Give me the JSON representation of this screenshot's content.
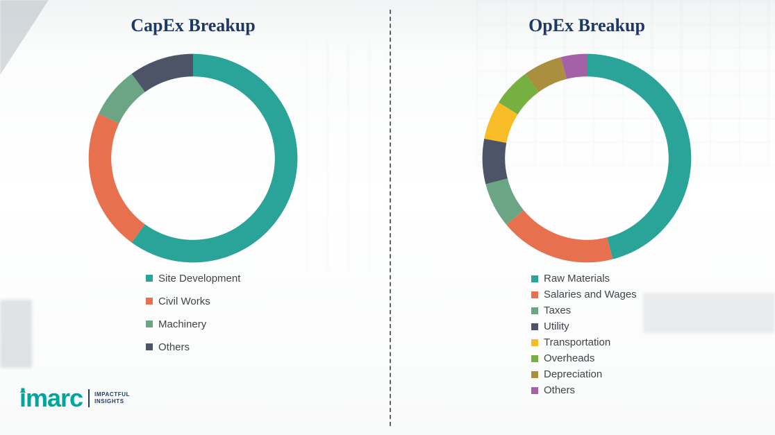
{
  "chart_data": [
    {
      "type": "pie",
      "donut": true,
      "title": "CapEx Breakup",
      "legend_position": "bottom",
      "segments": [
        {
          "label": "Site Development",
          "value": 60,
          "color": "#2aa398"
        },
        {
          "label": "Civil Works",
          "value": 22,
          "color": "#e7714e"
        },
        {
          "label": "Machinery",
          "value": 8,
          "color": "#6ba583"
        },
        {
          "label": "Others",
          "value": 10,
          "color": "#4d5468"
        }
      ]
    },
    {
      "type": "pie",
      "donut": true,
      "title": "OpEx Breakup",
      "legend_position": "bottom",
      "segments": [
        {
          "label": "Raw Materials",
          "value": 46,
          "color": "#2aa398"
        },
        {
          "label": "Salaries and Wages",
          "value": 18,
          "color": "#e7714e"
        },
        {
          "label": "Taxes",
          "value": 7,
          "color": "#6ba583"
        },
        {
          "label": "Utility",
          "value": 7,
          "color": "#4d5468"
        },
        {
          "label": "Transportation",
          "value": 6,
          "color": "#f8bc26"
        },
        {
          "label": "Overheads",
          "value": 6,
          "color": "#76b041"
        },
        {
          "label": "Depreciation",
          "value": 6,
          "color": "#a98f3e"
        },
        {
          "label": "Others",
          "value": 4,
          "color": "#a461a8"
        }
      ]
    }
  ],
  "logo": {
    "brand": "imarc",
    "tagline_line1": "IMPACTFUL",
    "tagline_line2": "INSIGHTS",
    "brand_color": "#00a59d",
    "text_color": "#1f3965"
  },
  "title_color": "#1f3965"
}
